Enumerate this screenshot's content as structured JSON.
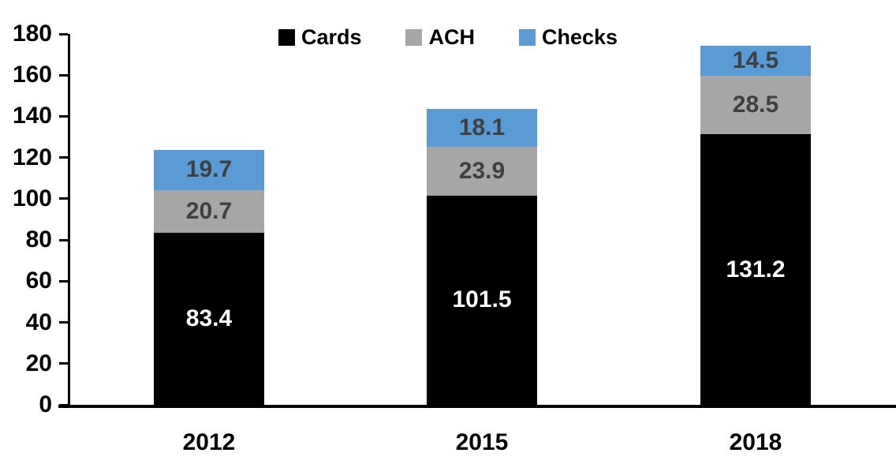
{
  "chart_data": {
    "type": "bar",
    "stacked": true,
    "categories": [
      "2012",
      "2015",
      "2018"
    ],
    "series": [
      {
        "name": "Cards",
        "color": "#000000",
        "label_color": "#ffffff",
        "values": [
          83.4,
          101.5,
          131.2
        ]
      },
      {
        "name": "ACH",
        "color": "#a6a6a6",
        "label_color": "#404040",
        "values": [
          20.7,
          23.9,
          28.5
        ]
      },
      {
        "name": "Checks",
        "color": "#5b9bd5",
        "label_color": "#404040",
        "values": [
          19.7,
          18.1,
          14.5
        ]
      }
    ],
    "totals": [
      123.8,
      143.5,
      174.2
    ],
    "title": "",
    "xlabel": "",
    "ylabel": "",
    "ylim": [
      0,
      180
    ],
    "yticks": [
      0,
      20,
      40,
      60,
      80,
      100,
      120,
      140,
      160,
      180
    ],
    "legend_position": "top-center",
    "grid": false
  },
  "colors": {
    "axis": "#000000",
    "background": "#ffffff",
    "tick_label": "#000000"
  }
}
